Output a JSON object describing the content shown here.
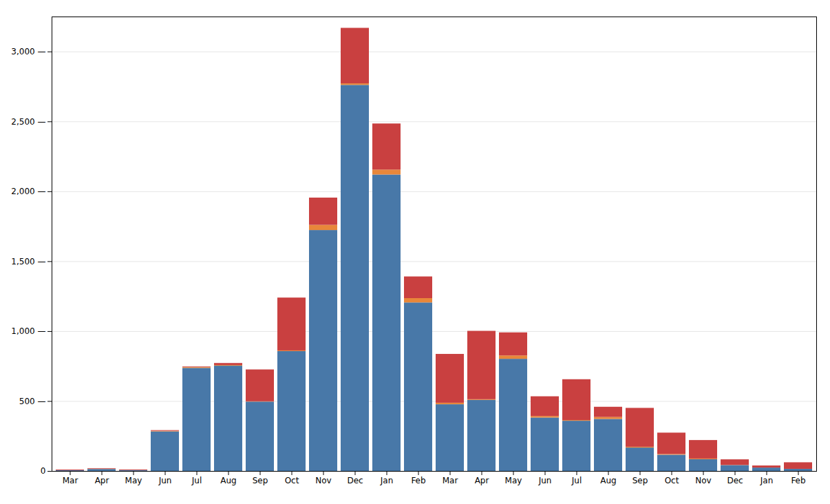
{
  "chart_data": {
    "type": "bar",
    "stacked": true,
    "grid": true,
    "categories": [
      "Mar",
      "Apr",
      "May",
      "Jun",
      "Jul",
      "Aug",
      "Sep",
      "Oct",
      "Nov",
      "Dec",
      "Jan",
      "Feb",
      "Mar",
      "Apr",
      "May",
      "Jun",
      "Jul",
      "Aug",
      "Sep",
      "Oct",
      "Nov",
      "Dec",
      "Jan",
      "Feb"
    ],
    "series": [
      {
        "color": "#4878a8",
        "values": [
          5,
          14,
          6,
          283,
          737,
          753,
          496,
          857,
          1723,
          2761,
          2120,
          1205,
          477,
          508,
          802,
          382,
          359,
          372,
          167,
          116,
          84,
          42,
          24,
          15
        ]
      },
      {
        "color": "#e8873a",
        "values": [
          0,
          2,
          0,
          4,
          6,
          5,
          2,
          5,
          37,
          11,
          35,
          31,
          11,
          5,
          24,
          11,
          5,
          14,
          6,
          5,
          5,
          1,
          0,
          0
        ]
      },
      {
        "color": "#c94040",
        "values": [
          5,
          4,
          5,
          5,
          4,
          14,
          228,
          378,
          195,
          397,
          330,
          155,
          349,
          489,
          165,
          141,
          292,
          73,
          278,
          153,
          132,
          40,
          15,
          47
        ]
      }
    ],
    "ylim": [
      0,
      3250
    ],
    "yticks": [
      0,
      {
        "value": 500,
        "label": "500 —"
      },
      {
        "value": 1000,
        "label": "1,000 —"
      },
      {
        "value": 1500,
        "label": "1,500 —"
      },
      {
        "value": 2000,
        "label": "2,000 —"
      },
      {
        "value": 2500,
        "label": "2,500 —"
      },
      {
        "value": 3000,
        "label": "3,000 —"
      }
    ]
  }
}
